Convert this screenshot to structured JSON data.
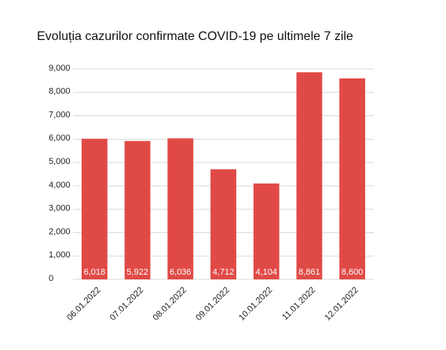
{
  "chart_data": {
    "type": "bar",
    "title": "Evoluția cazurilor confirmate COVID-19 pe ultimele 7 zile",
    "categories": [
      "06.01.2022",
      "07.01.2022",
      "08.01.2022",
      "09.01.2022",
      "10.01.2022",
      "11.01.2022",
      "12.01.2022"
    ],
    "values": [
      6018,
      5922,
      6036,
      4712,
      4104,
      8861,
      8600
    ],
    "value_labels": [
      "6,018",
      "5,922",
      "6,036",
      "4,712",
      "4,104",
      "8,861",
      "8,600"
    ],
    "color": "#e04a46",
    "ylim": [
      0,
      9000
    ],
    "yticks": [
      0,
      {
        "value": 1000,
        "label": "1,000"
      },
      {
        "value": 2000,
        "label": "2,000"
      },
      {
        "value": 3000,
        "label": "3,000"
      },
      {
        "value": 4000,
        "label": "4,000"
      },
      {
        "value": 5000,
        "label": "5,000"
      },
      {
        "value": 6000,
        "label": "6,000"
      },
      {
        "value": 7000,
        "label": "7,000"
      },
      {
        "value": 8000,
        "label": "8,000"
      },
      {
        "value": 9000,
        "label": "9,000"
      }
    ],
    "grid": true
  }
}
